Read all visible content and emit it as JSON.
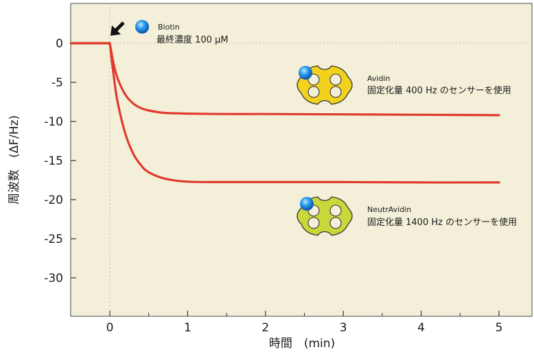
{
  "colors": {
    "plot_background": "#f3efd8",
    "series_line": "#e03a2e",
    "zero_line": "#b0ab98",
    "axis": "#333333",
    "arrow": "#111111",
    "avidin_fill": "#f2d21e",
    "neutravidin_fill": "#c8d83a",
    "biotin_ball": "#1c8fe0"
  },
  "icons": {
    "biotin": "blue-sphere-icon",
    "avidin": "four-lobed-protein-icon",
    "neutravidin": "four-lobed-protein-icon",
    "injection": "arrow-down-left-icon"
  },
  "chart_data": {
    "type": "line",
    "xlabel": "時間　(min)",
    "ylabel": "周波数　(ΔF/Hz)",
    "xlim": [
      -0.5,
      5.55
    ],
    "ylim": [
      -35,
      5
    ],
    "x_ticks": [
      0,
      1,
      2,
      3,
      4,
      5
    ],
    "y_ticks": [
      0,
      -5,
      -10,
      -15,
      -20,
      -25,
      -30
    ],
    "x_tick_labels": [
      "0",
      "1",
      "2",
      "3",
      "4",
      "5"
    ],
    "y_tick_labels": [
      "0",
      "-5",
      "-10",
      "-15",
      "-20",
      "-25",
      "-30"
    ],
    "grid": false,
    "series": [
      {
        "x": [
          -0.5,
          0,
          0.05,
          0.1,
          0.2,
          0.3,
          0.4,
          0.5,
          0.7,
          1.0,
          1.5,
          2,
          3,
          4,
          5
        ],
        "y": [
          0,
          0,
          -2.7,
          -4.5,
          -6.6,
          -7.7,
          -8.3,
          -8.6,
          -8.9,
          -9.0,
          -9.05,
          -9.05,
          -9.1,
          -9.15,
          -9.2
        ]
      },
      {
        "x": [
          -0.5,
          0,
          0.05,
          0.1,
          0.2,
          0.3,
          0.4,
          0.5,
          0.7,
          1.0,
          1.5,
          2,
          3,
          4,
          5
        ],
        "y": [
          0,
          0,
          -4.2,
          -7.5,
          -11.6,
          -14.1,
          -15.6,
          -16.5,
          -17.3,
          -17.7,
          -17.75,
          -17.75,
          -17.75,
          -17.8,
          -17.8
        ]
      }
    ],
    "annotations": {
      "biotin_name": "Biotin",
      "biotin_conc": "最終濃度 100 μM",
      "avidin_name": "Avidin",
      "avidin_desc": "固定化量 400 Hz のセンサーを使用",
      "neutravidin_name": "NeutrAvidin",
      "neutravidin_desc": "固定化量 1400 Hz のセンサーを使用"
    }
  }
}
